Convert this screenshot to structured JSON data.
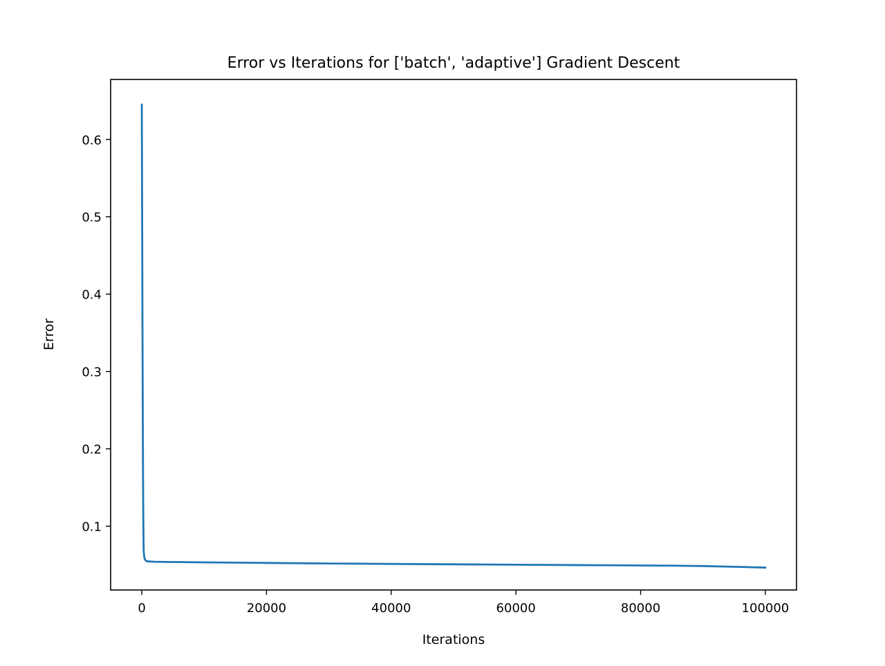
{
  "chart_data": {
    "type": "line",
    "title": "Error vs Iterations for ['batch', 'adaptive'] Gradient Descent",
    "xlabel": "Iterations",
    "ylabel": "Error",
    "xlim": [
      -5000,
      105000
    ],
    "ylim": [
      0.0175,
      0.6775
    ],
    "xticks": [
      0,
      20000,
      40000,
      60000,
      80000,
      100000
    ],
    "xtick_labels": [
      "0",
      "20000",
      "40000",
      "60000",
      "80000",
      "100000"
    ],
    "yticks": [
      0.1,
      0.2,
      0.3,
      0.4,
      0.5,
      0.6
    ],
    "ytick_labels": [
      "0.1",
      "0.2",
      "0.3",
      "0.4",
      "0.5",
      "0.6"
    ],
    "grid": false,
    "legend": "none",
    "series": [
      {
        "color": "#1f77b4",
        "x": [
          0,
          50,
          100,
          150,
          200,
          250,
          300,
          400,
          500,
          700,
          1000,
          2000,
          5000,
          10000,
          20000,
          30000,
          40000,
          50000,
          60000,
          70000,
          80000,
          85000,
          90000,
          95000,
          100000
        ],
        "y": [
          0.645,
          0.52,
          0.38,
          0.26,
          0.16,
          0.1,
          0.068,
          0.06,
          0.057,
          0.055,
          0.0545,
          0.054,
          0.0537,
          0.0532,
          0.0525,
          0.0518,
          0.0512,
          0.0507,
          0.0502,
          0.0497,
          0.0492,
          0.049,
          0.0485,
          0.0475,
          0.0465
        ]
      }
    ]
  }
}
